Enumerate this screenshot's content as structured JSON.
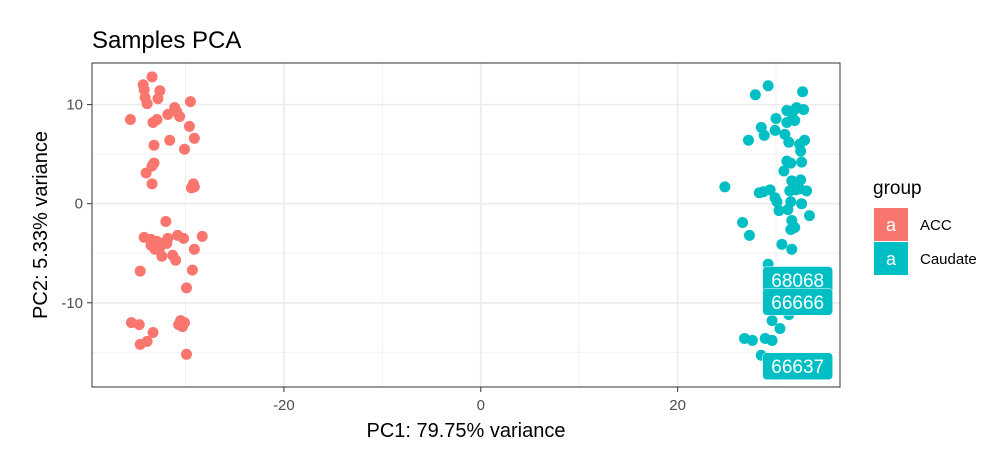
{
  "chart_data": {
    "type": "scatter",
    "title": "Samples PCA",
    "xlabel": "PC1: 79.75% variance",
    "ylabel": "PC2: 5.33% variance",
    "xlim": [
      -39.5,
      36.5
    ],
    "ylim": [
      -18.5,
      14.2
    ],
    "x_ticks": [
      -20,
      0,
      20
    ],
    "x_tick_labels": [
      "-20",
      "0",
      "20"
    ],
    "y_ticks": [
      -10,
      0,
      10
    ],
    "y_tick_labels": [
      "-10",
      "0",
      "10"
    ],
    "grid": true,
    "legend": {
      "title": "group",
      "position": "right",
      "glyph": "a",
      "entries": [
        {
          "label": "ACC",
          "color": "#F8766D"
        },
        {
          "label": "Caudate",
          "color": "#00BFC4"
        }
      ]
    },
    "series": [
      {
        "name": "ACC",
        "color": "#F8766D",
        "points": [
          [
            -35.6,
            8.5
          ],
          [
            -34.2,
            11.5
          ],
          [
            -34.3,
            12.0
          ],
          [
            -33.4,
            12.8
          ],
          [
            -34.1,
            10.7
          ],
          [
            -32.6,
            11.4
          ],
          [
            -32.8,
            10.6
          ],
          [
            -33.9,
            10.1
          ],
          [
            -31.1,
            9.7
          ],
          [
            -31.8,
            9.0
          ],
          [
            -30.9,
            9.3
          ],
          [
            -29.5,
            10.3
          ],
          [
            -32.9,
            8.5
          ],
          [
            -33.3,
            8.2
          ],
          [
            -30.6,
            8.8
          ],
          [
            -29.6,
            7.8
          ],
          [
            -29.1,
            6.6
          ],
          [
            -31.6,
            6.4
          ],
          [
            -33.2,
            5.9
          ],
          [
            -30.1,
            5.5
          ],
          [
            -33.2,
            4.1
          ],
          [
            -33.4,
            3.8
          ],
          [
            -34.0,
            3.1
          ],
          [
            -33.4,
            2.0
          ],
          [
            -29.2,
            2.0
          ],
          [
            -29.1,
            1.7
          ],
          [
            -29.4,
            1.6
          ],
          [
            -32.0,
            -1.8
          ],
          [
            -34.2,
            -3.4
          ],
          [
            -33.5,
            -3.6
          ],
          [
            -33.5,
            -4.2
          ],
          [
            -33.1,
            -4.6
          ],
          [
            -32.9,
            -3.8
          ],
          [
            -32.6,
            -4.4
          ],
          [
            -32.2,
            -4.0
          ],
          [
            -31.8,
            -3.5
          ],
          [
            -31.9,
            -4.0
          ],
          [
            -31.3,
            -5.2
          ],
          [
            -31.0,
            -5.7
          ],
          [
            -30.8,
            -3.2
          ],
          [
            -30.2,
            -3.5
          ],
          [
            -32.4,
            -5.3
          ],
          [
            -29.1,
            -4.6
          ],
          [
            -28.3,
            -3.3
          ],
          [
            -29.3,
            -6.7
          ],
          [
            -34.6,
            -6.8
          ],
          [
            -29.9,
            -8.5
          ],
          [
            -35.5,
            -12.0
          ],
          [
            -34.7,
            -12.2
          ],
          [
            -33.3,
            -13.0
          ],
          [
            -30.5,
            -11.8
          ],
          [
            -30.7,
            -12.2
          ],
          [
            -30.3,
            -12.4
          ],
          [
            -30.1,
            -12.0
          ],
          [
            -34.6,
            -14.2
          ],
          [
            -33.9,
            -13.9
          ],
          [
            -29.9,
            -15.2
          ]
        ]
      },
      {
        "name": "Caudate",
        "color": "#00BFC4",
        "points": [
          [
            29.2,
            11.9
          ],
          [
            27.9,
            11.0
          ],
          [
            32.1,
            9.7
          ],
          [
            32.7,
            11.3
          ],
          [
            31.1,
            9.4
          ],
          [
            31.8,
            9.4
          ],
          [
            32.8,
            9.5
          ],
          [
            31.6,
            9.1
          ],
          [
            30.0,
            8.6
          ],
          [
            31.1,
            8.2
          ],
          [
            31.9,
            8.4
          ],
          [
            28.5,
            7.7
          ],
          [
            29.9,
            7.4
          ],
          [
            30.9,
            7.0
          ],
          [
            28.8,
            6.9
          ],
          [
            27.2,
            6.4
          ],
          [
            31.3,
            6.2
          ],
          [
            32.4,
            6.0
          ],
          [
            32.9,
            6.4
          ],
          [
            32.5,
            5.3
          ],
          [
            31.1,
            4.3
          ],
          [
            31.5,
            4.1
          ],
          [
            32.6,
            4.2
          ],
          [
            30.8,
            3.3
          ],
          [
            31.6,
            2.3
          ],
          [
            32.5,
            2.4
          ],
          [
            24.8,
            1.7
          ],
          [
            28.3,
            1.1
          ],
          [
            28.7,
            1.2
          ],
          [
            29.4,
            1.4
          ],
          [
            31.4,
            1.3
          ],
          [
            32.0,
            1.4
          ],
          [
            32.4,
            1.5
          ],
          [
            33.1,
            1.3
          ],
          [
            29.9,
            0.6
          ],
          [
            30.1,
            0.2
          ],
          [
            30.3,
            -0.7
          ],
          [
            31.5,
            0.2
          ],
          [
            32.6,
            0.0
          ],
          [
            31.2,
            -0.6
          ],
          [
            33.4,
            -1.2
          ],
          [
            31.6,
            -1.7
          ],
          [
            31.9,
            -2.4
          ],
          [
            31.5,
            -2.6
          ],
          [
            26.6,
            -1.9
          ],
          [
            27.3,
            -3.2
          ],
          [
            30.6,
            -4.1
          ],
          [
            31.6,
            -4.6
          ],
          [
            29.2,
            -6.1
          ],
          [
            30.9,
            -8.3
          ],
          [
            31.2,
            -9.2
          ],
          [
            31.3,
            -11.2
          ],
          [
            29.6,
            -11.8
          ],
          [
            30.4,
            -12.6
          ],
          [
            26.8,
            -13.6
          ],
          [
            27.6,
            -13.8
          ],
          [
            28.9,
            -13.6
          ],
          [
            29.6,
            -13.8
          ],
          [
            28.5,
            -15.3
          ]
        ]
      }
    ],
    "point_labels": [
      {
        "text": "68068",
        "x": 32.2,
        "y": -7.7,
        "color": "#00BFC4"
      },
      {
        "text": "66666",
        "x": 32.2,
        "y": -9.9,
        "color": "#00BFC4"
      },
      {
        "text": "66637",
        "x": 32.2,
        "y": -16.4,
        "color": "#00BFC4"
      }
    ]
  }
}
